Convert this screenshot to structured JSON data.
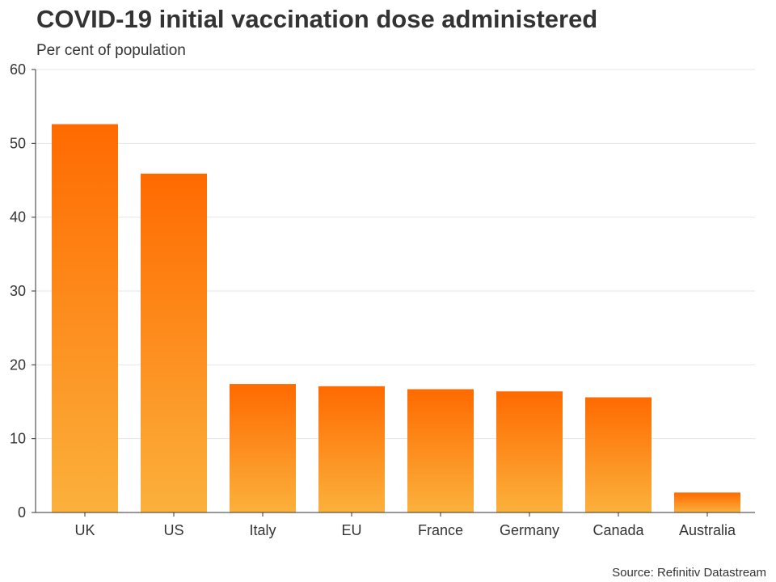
{
  "chart_data": {
    "type": "bar",
    "title": "COVID-19 initial vaccination dose administered",
    "subtitle": "Per cent of population",
    "xlabel": "",
    "ylabel": "",
    "categories": [
      "UK",
      "US",
      "Italy",
      "EU",
      "France",
      "Germany",
      "Canada",
      "Australia"
    ],
    "values": [
      52.6,
      45.9,
      17.4,
      17.1,
      16.7,
      16.4,
      15.6,
      2.7
    ],
    "ylim": [
      0,
      60
    ],
    "yticks": [
      0,
      10,
      20,
      30,
      40,
      50,
      60
    ],
    "grid": true,
    "source": "Source: Refinitiv Datastream",
    "colors": {
      "bar_top": "#ff6a00",
      "bar_bottom": "#fbb13c",
      "gridline": "#e6e6e6",
      "axis": "#333333"
    }
  }
}
